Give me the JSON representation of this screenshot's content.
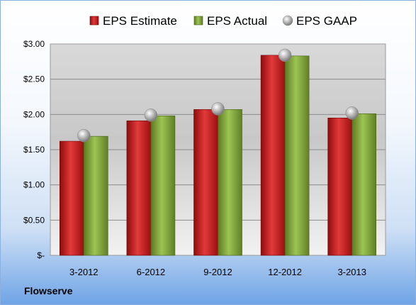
{
  "chart_data": {
    "type": "bar",
    "categories": [
      "3-2012",
      "6-2012",
      "9-2012",
      "12-2012",
      "3-2013"
    ],
    "series": [
      {
        "name": "EPS Estimate",
        "values": [
          1.62,
          1.91,
          2.07,
          2.84,
          1.95
        ],
        "color": "#cc1c1c"
      },
      {
        "name": "EPS Actual",
        "values": [
          1.69,
          1.98,
          2.07,
          2.83,
          2.01
        ],
        "color": "#7fa33a"
      },
      {
        "name": "EPS GAAP",
        "values": [
          1.7,
          1.99,
          2.08,
          2.84,
          2.02
        ],
        "color": "#b8b8b8",
        "style": "marker"
      }
    ],
    "ylim": [
      0,
      3.0
    ],
    "yticks": [
      0,
      0.5,
      1.0,
      1.5,
      2.0,
      2.5,
      3.0
    ],
    "ytick_labels": [
      "$-",
      "$0.50",
      "$1.00",
      "$1.50",
      "$2.00",
      "$2.50",
      "$3.00"
    ],
    "grid": true,
    "legend_position": "top"
  },
  "company": "Flowserve"
}
